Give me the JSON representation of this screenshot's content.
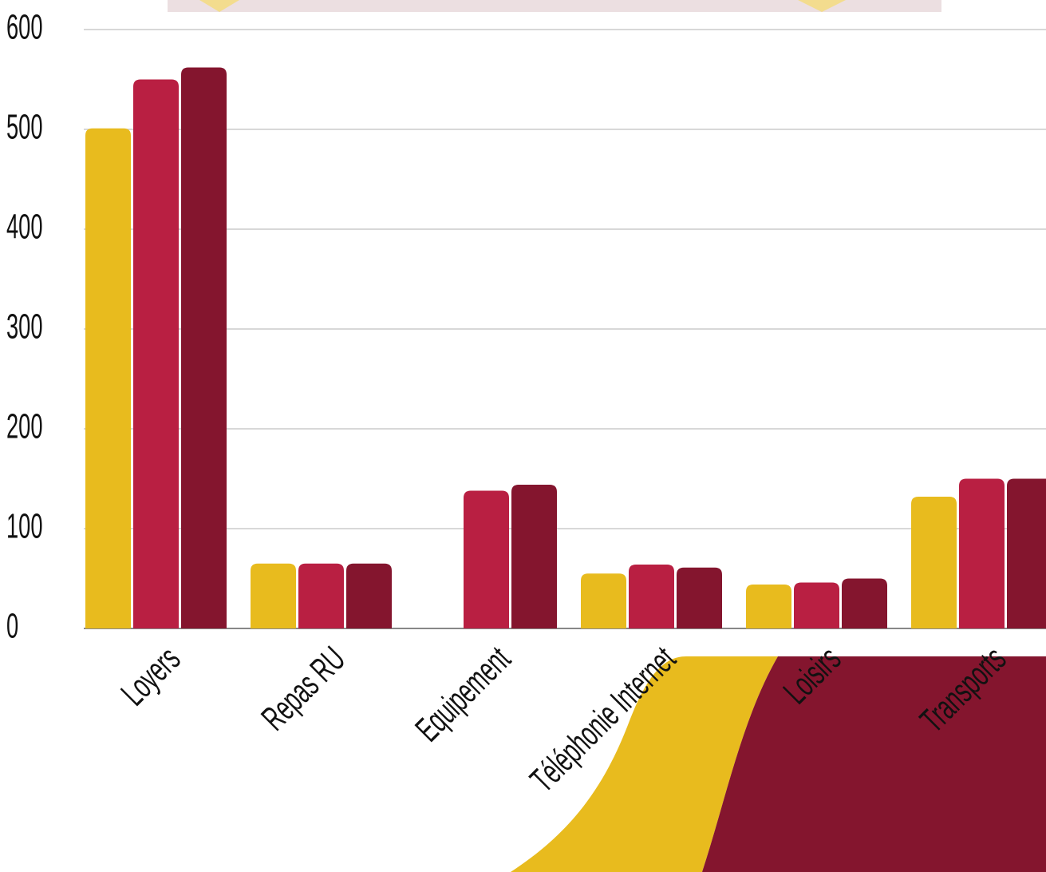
{
  "chart_data": {
    "type": "bar",
    "categories": [
      "Loyers",
      "Repas RU",
      "Equipement",
      "Téléphonie Internet",
      "Loisirs",
      "Transports"
    ],
    "series": [
      {
        "color": "#e8bb1e",
        "values": [
          501,
          65,
          null,
          55,
          44,
          132
        ]
      },
      {
        "color": "#b91f42",
        "values": [
          550,
          65,
          138,
          64,
          46,
          150
        ]
      },
      {
        "color": "#84152e",
        "values": [
          562,
          65,
          144,
          61,
          50,
          150
        ]
      }
    ],
    "ylim": [
      0,
      600
    ],
    "yticks": [
      0,
      100,
      200,
      300,
      400,
      500,
      600
    ],
    "grid": true
  }
}
